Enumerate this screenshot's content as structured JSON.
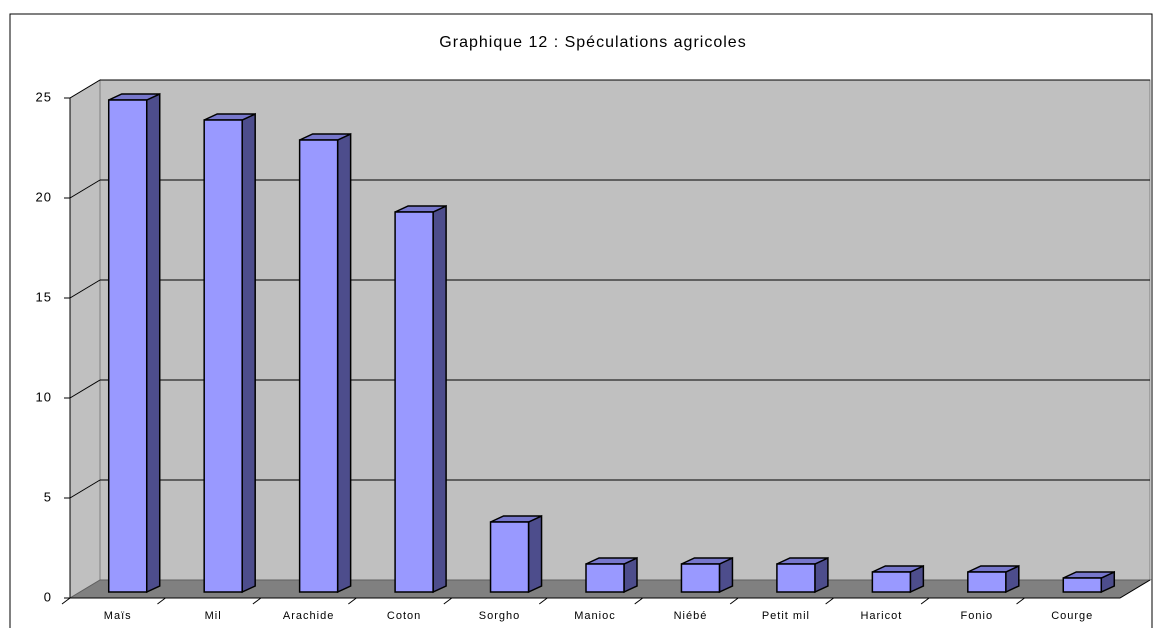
{
  "chart_data": {
    "type": "bar3d",
    "title": "Graphique 12 : Spéculations agricoles",
    "categories": [
      "Maïs",
      "Mil",
      "Arachide",
      "Coton",
      "Sorgho",
      "Manioc",
      "Niébé",
      "Petit mil",
      "Haricot",
      "Fonio",
      "Courge"
    ],
    "values": [
      24.6,
      23.6,
      22.6,
      19,
      3.5,
      1.4,
      1.4,
      1.4,
      1,
      1,
      0.7
    ],
    "color": "#9999ff",
    "ylim": [
      0,
      25
    ],
    "yticks": [
      0,
      5,
      10,
      15,
      20,
      25
    ],
    "grid": true
  }
}
